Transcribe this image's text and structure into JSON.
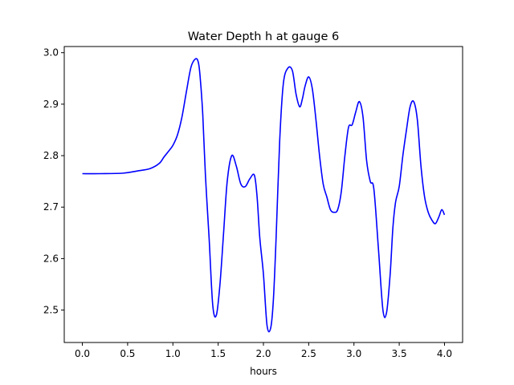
{
  "chart_data": {
    "type": "line",
    "title": "Water Depth h at gauge 6",
    "xlabel": "hours",
    "ylabel": "",
    "xlim": [
      -0.2,
      4.2
    ],
    "ylim": [
      2.437,
      3.012
    ],
    "x_ticks": [
      0.0,
      0.5,
      1.0,
      1.5,
      2.0,
      2.5,
      3.0,
      3.5,
      4.0
    ],
    "x_tick_labels": [
      "0.0",
      "0.5",
      "1.0",
      "1.5",
      "2.0",
      "2.5",
      "3.0",
      "3.5",
      "4.0"
    ],
    "y_ticks": [
      2.5,
      2.6,
      2.7,
      2.8,
      2.9,
      3.0
    ],
    "y_tick_labels": [
      "2.5",
      "2.6",
      "2.7",
      "2.8",
      "2.9",
      "3.0"
    ],
    "grid": false,
    "legend": "none",
    "series": [
      {
        "color": "#0000ff",
        "x": [
          0.0,
          0.2,
          0.45,
          0.6,
          0.75,
          0.85,
          0.9,
          0.95,
          1.0,
          1.05,
          1.1,
          1.15,
          1.2,
          1.25,
          1.28,
          1.3,
          1.33,
          1.36,
          1.4,
          1.44,
          1.48,
          1.52,
          1.56,
          1.6,
          1.65,
          1.7,
          1.75,
          1.8,
          1.85,
          1.9,
          1.93,
          1.96,
          2.0,
          2.04,
          2.08,
          2.11,
          2.14,
          2.18,
          2.22,
          2.27,
          2.32,
          2.36,
          2.4,
          2.43,
          2.46,
          2.5,
          2.54,
          2.58,
          2.62,
          2.66,
          2.7,
          2.74,
          2.78,
          2.82,
          2.86,
          2.9,
          2.94,
          2.98,
          3.02,
          3.06,
          3.1,
          3.14,
          3.18,
          3.22,
          3.27,
          3.32,
          3.36,
          3.4,
          3.43,
          3.46,
          3.5,
          3.54,
          3.58,
          3.62,
          3.66,
          3.7,
          3.74,
          3.78,
          3.82,
          3.86,
          3.9,
          3.94,
          3.97,
          4.0
        ],
        "y": [
          2.765,
          2.765,
          2.766,
          2.77,
          2.775,
          2.785,
          2.797,
          2.808,
          2.82,
          2.84,
          2.875,
          2.925,
          2.972,
          2.988,
          2.982,
          2.955,
          2.88,
          2.76,
          2.64,
          2.51,
          2.49,
          2.55,
          2.65,
          2.75,
          2.8,
          2.78,
          2.745,
          2.74,
          2.755,
          2.762,
          2.72,
          2.64,
          2.57,
          2.47,
          2.465,
          2.52,
          2.64,
          2.83,
          2.94,
          2.97,
          2.965,
          2.92,
          2.895,
          2.91,
          2.935,
          2.953,
          2.93,
          2.87,
          2.8,
          2.745,
          2.72,
          2.695,
          2.69,
          2.695,
          2.73,
          2.8,
          2.855,
          2.86,
          2.885,
          2.905,
          2.875,
          2.79,
          2.75,
          2.735,
          2.62,
          2.5,
          2.495,
          2.57,
          2.66,
          2.71,
          2.74,
          2.8,
          2.85,
          2.895,
          2.905,
          2.87,
          2.78,
          2.72,
          2.69,
          2.675,
          2.668,
          2.682,
          2.695,
          2.685
        ]
      }
    ]
  }
}
